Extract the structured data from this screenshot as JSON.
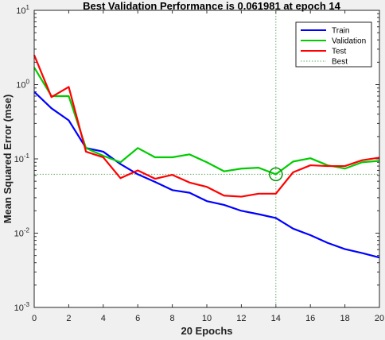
{
  "chart_data": {
    "type": "line",
    "title": "Best Validation Performance is 0.061981 at epoch 14",
    "xlabel": "20 Epochs",
    "ylabel": "Mean Squared Error  (mse)",
    "x_scale": "linear",
    "y_scale": "log",
    "xlim": [
      0,
      20
    ],
    "ylim": [
      0.001,
      10
    ],
    "xticks": [
      "0",
      "2",
      "4",
      "6",
      "8",
      "10",
      "12",
      "14",
      "16",
      "18",
      "20"
    ],
    "x": [
      0,
      1,
      2,
      3,
      4,
      5,
      6,
      7,
      8,
      9,
      10,
      11,
      12,
      13,
      14,
      15,
      16,
      17,
      18,
      19,
      20
    ],
    "series": [
      {
        "name": "Train",
        "color": "#0000ff",
        "values": [
          0.8,
          0.48,
          0.33,
          0.14,
          0.125,
          0.085,
          0.062,
          0.049,
          0.038,
          0.035,
          0.027,
          0.024,
          0.02,
          0.018,
          0.016,
          0.0115,
          0.0094,
          0.0074,
          0.0061,
          0.0054,
          0.0047
        ]
      },
      {
        "name": "Validation",
        "color": "#00cc00",
        "values": [
          1.7,
          0.7,
          0.7,
          0.14,
          0.11,
          0.09,
          0.14,
          0.105,
          0.105,
          0.115,
          0.09,
          0.068,
          0.074,
          0.076,
          0.062,
          0.092,
          0.102,
          0.082,
          0.074,
          0.09,
          0.094
        ]
      },
      {
        "name": "Test",
        "color": "#ff0000",
        "values": [
          2.5,
          0.68,
          0.93,
          0.125,
          0.105,
          0.055,
          0.07,
          0.054,
          0.061,
          0.048,
          0.042,
          0.032,
          0.031,
          0.034,
          0.034,
          0.066,
          0.082,
          0.08,
          0.08,
          0.096,
          0.104
        ]
      }
    ],
    "best": {
      "name": "Best",
      "epoch": 14,
      "value": 0.061981,
      "color": "#66aa66"
    },
    "legend_position": "top-right",
    "background": "#ffffff",
    "figure_background": "#f0f0f0"
  }
}
